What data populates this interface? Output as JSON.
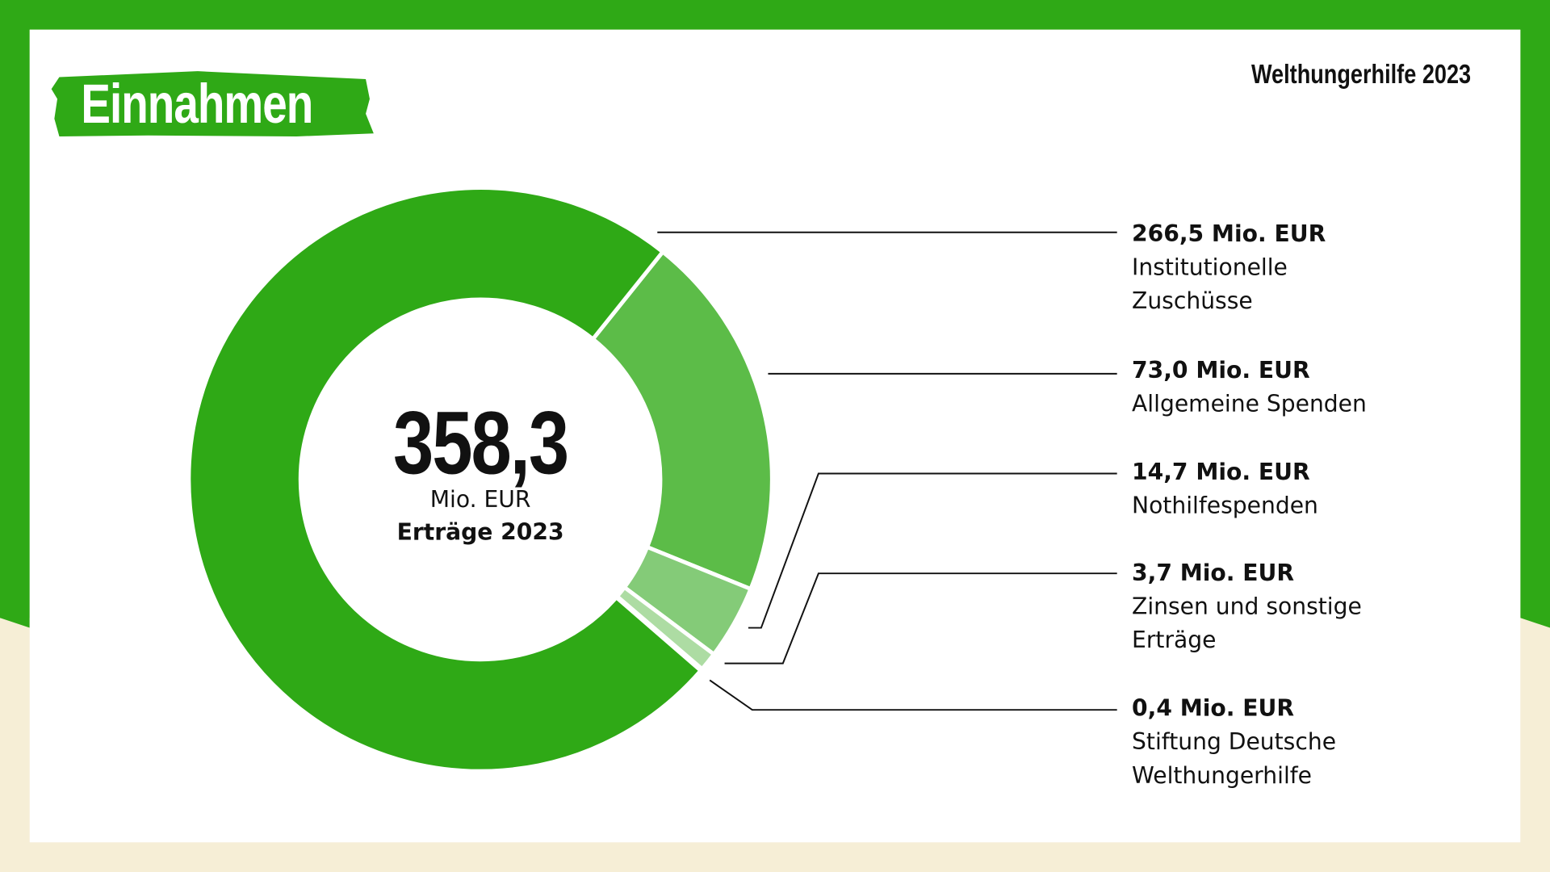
{
  "header": {
    "title": "Einnahmen",
    "brand": "Welthungerhilfe 2023"
  },
  "colors": {
    "frame": "#2fa916",
    "background": "#f6eed6"
  },
  "chart_data": {
    "type": "pie",
    "donut": true,
    "total": {
      "value": "358,3",
      "unit": "Mio. EUR",
      "label": "Erträge 2023"
    },
    "slices": [
      {
        "name": "Allgemeine Spenden",
        "value": 73.0,
        "value_label": "73,0 Mio. EUR",
        "color": "#5cbc48"
      },
      {
        "name": "Nothilfespenden",
        "value": 14.7,
        "value_label": "14,7 Mio. EUR",
        "color": "#84cb78"
      },
      {
        "name": "Zinsen und sonstige Erträge",
        "value": 3.7,
        "value_label": "3,7 Mio. EUR",
        "color": "#addca3"
      },
      {
        "name": "Stiftung Deutsche Welthungerhilfe",
        "value": 0.4,
        "value_label": "0,4 Mio. EUR",
        "color": "#fcc77a"
      },
      {
        "name": "Institutionelle Zuschüsse",
        "value": 266.5,
        "value_label": "266,5 Mio. EUR",
        "color": "#2fa916"
      }
    ],
    "legend_order": [
      4,
      0,
      1,
      2,
      3
    ]
  }
}
